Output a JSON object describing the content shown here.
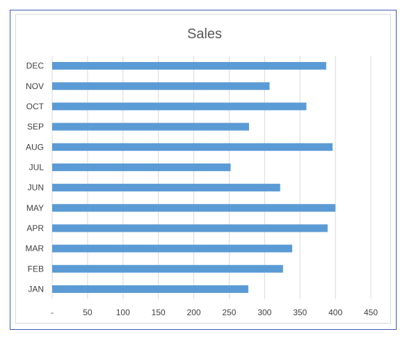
{
  "chart_data": {
    "type": "bar",
    "orientation": "horizontal",
    "title": "Sales",
    "categories": [
      "JAN",
      "FEB",
      "MAR",
      "APR",
      "MAY",
      "JUN",
      "JUL",
      "AUG",
      "SEP",
      "OCT",
      "NOV",
      "DEC"
    ],
    "values": [
      277,
      326,
      339,
      389,
      400,
      322,
      252,
      396,
      278,
      359,
      307,
      387
    ],
    "xlim": [
      0,
      450
    ],
    "ticks": [
      "-",
      "50",
      "100",
      "150",
      "200",
      "250",
      "300",
      "350",
      "400",
      "450"
    ],
    "tick_values": [
      0,
      50,
      100,
      150,
      200,
      250,
      300,
      350,
      400,
      450
    ],
    "grid": true,
    "bar_color": "#5b9bd5",
    "grid_color": "#d9d9d9"
  }
}
